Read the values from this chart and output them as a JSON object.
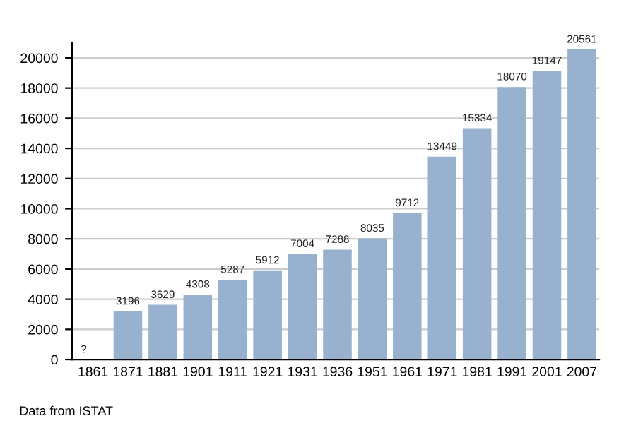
{
  "chart_data": {
    "type": "bar",
    "categories": [
      "1861",
      "1871",
      "1881",
      "1901",
      "1911",
      "1921",
      "1931",
      "1936",
      "1951",
      "1961",
      "1971",
      "1981",
      "1991",
      "2001",
      "2007"
    ],
    "values": [
      null,
      3196,
      3629,
      4308,
      5287,
      5912,
      7004,
      7288,
      8035,
      9712,
      13449,
      15334,
      18070,
      19147,
      20561
    ],
    "value_labels": [
      "?",
      "3196",
      "3629",
      "4308",
      "5287",
      "5912",
      "7004",
      "7288",
      "8035",
      "9712",
      "13449",
      "15334",
      "18070",
      "19147",
      "20561"
    ],
    "color": "#97b1cf",
    "ylim": [
      0,
      21000
    ],
    "yticks": [
      0,
      2000,
      4000,
      6000,
      8000,
      10000,
      12000,
      14000,
      16000,
      18000,
      20000
    ],
    "grid": "y",
    "annotations": [
      "Data from ISTAT"
    ]
  }
}
